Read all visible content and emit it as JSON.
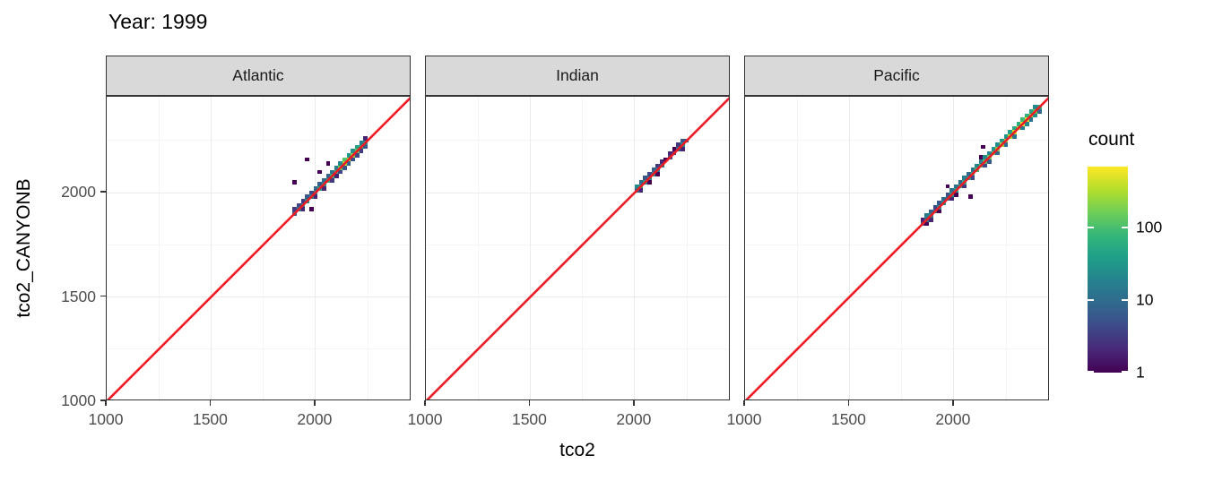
{
  "title": "Year: 1999",
  "axes": {
    "x": {
      "title": "tco2",
      "tick_labels": [
        "1000",
        "1500",
        "2000"
      ],
      "tick_values": [
        1000,
        1500,
        2000
      ],
      "minor_values": [
        1250,
        1750,
        2250
      ],
      "range": [
        1000,
        2460
      ]
    },
    "y": {
      "title": "tco2_CANYONB",
      "tick_labels": [
        "1000",
        "1500",
        "2000"
      ],
      "tick_values": [
        1000,
        1500,
        2000
      ],
      "minor_values": [
        1250,
        1750,
        2250
      ],
      "range": [
        1000,
        2460
      ]
    }
  },
  "legend": {
    "title": "count",
    "tick_labels": [
      "100",
      "10",
      "1"
    ],
    "tick_values": [
      100,
      10,
      1
    ],
    "transform": "log10",
    "max_count": 700,
    "position": "right"
  },
  "colors": {
    "reference_line": "#ED1C24",
    "strip_background": "#D9D9D9",
    "panel_border": "#333333",
    "grid_major": "#EBEBEB",
    "grid_minor": "#F4F4F4",
    "tick_label": "#4D4D4D",
    "viridis": [
      "#440154",
      "#482878",
      "#3E4A89",
      "#31688E",
      "#26828E",
      "#1F9E89",
      "#35B779",
      "#6ECE58",
      "#B5DE2B",
      "#FDE725"
    ]
  },
  "chart_data": {
    "type": "heatmap",
    "subtype": "2d-binned scatter (geom_bin2d) with identity reference line, faceted by ocean basin",
    "title": "Year: 1999",
    "xlabel": "tco2",
    "ylabel": "tco2_CANYONB",
    "xlim": [
      1000,
      2460
    ],
    "ylim": [
      1000,
      2460
    ],
    "grid": true,
    "bin_width": 20,
    "fill_scale": {
      "name": "count",
      "palette": "viridis",
      "transform": "log10",
      "ticks": [
        1,
        10,
        100
      ],
      "max": 700
    },
    "reference_line": {
      "type": "identity",
      "equation": "y = x",
      "color": "red"
    },
    "facets": [
      {
        "label": "Atlantic",
        "bins": [
          [
            1900,
            1900,
            6
          ],
          [
            1900,
            1920,
            3
          ],
          [
            1900,
            2050,
            1
          ],
          [
            1920,
            1920,
            14
          ],
          [
            1920,
            1940,
            4
          ],
          [
            1940,
            1940,
            22
          ],
          [
            1940,
            1960,
            3
          ],
          [
            1940,
            1920,
            2
          ],
          [
            1960,
            1960,
            28
          ],
          [
            1960,
            1980,
            6
          ],
          [
            1960,
            2160,
            1
          ],
          [
            1980,
            1980,
            20
          ],
          [
            1980,
            2000,
            4
          ],
          [
            1980,
            1920,
            1
          ],
          [
            2000,
            2000,
            34
          ],
          [
            2000,
            2020,
            8
          ],
          [
            2000,
            1980,
            2
          ],
          [
            2020,
            2020,
            45
          ],
          [
            2020,
            2040,
            7
          ],
          [
            2020,
            2100,
            1
          ],
          [
            2040,
            2040,
            38
          ],
          [
            2040,
            2060,
            10
          ],
          [
            2040,
            2020,
            2
          ],
          [
            2060,
            2060,
            55
          ],
          [
            2060,
            2080,
            8
          ],
          [
            2060,
            2140,
            1
          ],
          [
            2080,
            2080,
            70
          ],
          [
            2080,
            2100,
            12
          ],
          [
            2080,
            2060,
            3
          ],
          [
            2100,
            2100,
            90
          ],
          [
            2100,
            2120,
            16
          ],
          [
            2100,
            2080,
            2
          ],
          [
            2120,
            2120,
            160
          ],
          [
            2120,
            2140,
            22
          ],
          [
            2120,
            2100,
            4
          ],
          [
            2140,
            2140,
            320
          ],
          [
            2140,
            2160,
            110
          ],
          [
            2140,
            2120,
            6
          ],
          [
            2160,
            2160,
            420
          ],
          [
            2160,
            2180,
            35
          ],
          [
            2160,
            2140,
            8
          ],
          [
            2180,
            2180,
            230
          ],
          [
            2180,
            2200,
            28
          ],
          [
            2180,
            2160,
            5
          ],
          [
            2200,
            2200,
            130
          ],
          [
            2200,
            2220,
            45
          ],
          [
            2200,
            2180,
            4
          ],
          [
            2220,
            2220,
            70
          ],
          [
            2220,
            2240,
            18
          ],
          [
            2220,
            2200,
            3
          ],
          [
            2240,
            2240,
            28
          ],
          [
            2240,
            2220,
            6
          ],
          [
            2240,
            2260,
            2
          ]
        ]
      },
      {
        "label": "Indian",
        "bins": [
          [
            2010,
            2010,
            8
          ],
          [
            2010,
            2030,
            22
          ],
          [
            2030,
            2030,
            45
          ],
          [
            2030,
            2050,
            9
          ],
          [
            2030,
            2010,
            2
          ],
          [
            2050,
            2050,
            32
          ],
          [
            2050,
            2070,
            6
          ],
          [
            2070,
            2070,
            20
          ],
          [
            2070,
            2090,
            4
          ],
          [
            2070,
            2050,
            1
          ],
          [
            2090,
            2090,
            26
          ],
          [
            2090,
            2110,
            7
          ],
          [
            2110,
            2110,
            16
          ],
          [
            2110,
            2130,
            3
          ],
          [
            2110,
            2090,
            1
          ],
          [
            2130,
            2130,
            12
          ],
          [
            2130,
            2150,
            2
          ],
          [
            2150,
            2160,
            1
          ],
          [
            2170,
            2170,
            4
          ],
          [
            2170,
            2190,
            2
          ],
          [
            2190,
            2190,
            3
          ],
          [
            2190,
            2210,
            1
          ],
          [
            2210,
            2210,
            9
          ],
          [
            2210,
            2230,
            3
          ],
          [
            2230,
            2230,
            28
          ],
          [
            2230,
            2250,
            6
          ],
          [
            2230,
            2210,
            2
          ],
          [
            2250,
            2250,
            7
          ]
        ]
      },
      {
        "label": "Pacific",
        "bins": [
          [
            1850,
            1850,
            5
          ],
          [
            1850,
            1870,
            2
          ],
          [
            1870,
            1870,
            12
          ],
          [
            1870,
            1890,
            16
          ],
          [
            1870,
            1850,
            1
          ],
          [
            1890,
            1890,
            22
          ],
          [
            1890,
            1910,
            8
          ],
          [
            1890,
            1870,
            2
          ],
          [
            1910,
            1910,
            15
          ],
          [
            1910,
            1930,
            4
          ],
          [
            1930,
            1930,
            26
          ],
          [
            1930,
            1950,
            6
          ],
          [
            1930,
            1910,
            1
          ],
          [
            1950,
            1950,
            32
          ],
          [
            1950,
            1970,
            9
          ],
          [
            1970,
            1970,
            22
          ],
          [
            1970,
            1990,
            5
          ],
          [
            1970,
            2030,
            1
          ],
          [
            1990,
            1990,
            36
          ],
          [
            1990,
            2010,
            11
          ],
          [
            1990,
            1970,
            2
          ],
          [
            2010,
            2010,
            42
          ],
          [
            2010,
            2030,
            12
          ],
          [
            2010,
            1990,
            1
          ],
          [
            2030,
            2030,
            52
          ],
          [
            2030,
            2050,
            9
          ],
          [
            2050,
            2050,
            62
          ],
          [
            2050,
            2070,
            15
          ],
          [
            2050,
            2030,
            3
          ],
          [
            2070,
            2070,
            48
          ],
          [
            2070,
            2090,
            10
          ],
          [
            2080,
            1980,
            1
          ],
          [
            2090,
            2090,
            72
          ],
          [
            2090,
            2110,
            13
          ],
          [
            2090,
            2070,
            4
          ],
          [
            2110,
            2110,
            95
          ],
          [
            2110,
            2130,
            20
          ],
          [
            2130,
            2130,
            105
          ],
          [
            2130,
            2150,
            16
          ],
          [
            2130,
            2170,
            1
          ],
          [
            2140,
            2220,
            1
          ],
          [
            2150,
            2150,
            125
          ],
          [
            2150,
            2170,
            26
          ],
          [
            2150,
            2130,
            5
          ],
          [
            2170,
            2170,
            155
          ],
          [
            2170,
            2190,
            22
          ],
          [
            2170,
            2150,
            7
          ],
          [
            2190,
            2190,
            185
          ],
          [
            2190,
            2210,
            32
          ],
          [
            2210,
            2210,
            210
          ],
          [
            2210,
            2230,
            26
          ],
          [
            2210,
            2190,
            9
          ],
          [
            2230,
            2230,
            260
          ],
          [
            2230,
            2250,
            36
          ],
          [
            2250,
            2250,
            310
          ],
          [
            2250,
            2270,
            32
          ],
          [
            2250,
            2230,
            10
          ],
          [
            2270,
            2270,
            360
          ],
          [
            2270,
            2290,
            42
          ],
          [
            2290,
            2290,
            460
          ],
          [
            2290,
            2310,
            52
          ],
          [
            2290,
            2270,
            12
          ],
          [
            2310,
            2310,
            520
          ],
          [
            2310,
            2330,
            62
          ],
          [
            2330,
            2330,
            620
          ],
          [
            2330,
            2350,
            85
          ],
          [
            2330,
            2310,
            16
          ],
          [
            2350,
            2350,
            520
          ],
          [
            2350,
            2370,
            65
          ],
          [
            2350,
            2330,
            22
          ],
          [
            2370,
            2370,
            320
          ],
          [
            2370,
            2390,
            45
          ],
          [
            2370,
            2350,
            12
          ],
          [
            2390,
            2390,
            160
          ],
          [
            2390,
            2410,
            22
          ],
          [
            2390,
            2370,
            26
          ],
          [
            2410,
            2410,
            55
          ],
          [
            2410,
            2390,
            9
          ]
        ]
      }
    ]
  }
}
